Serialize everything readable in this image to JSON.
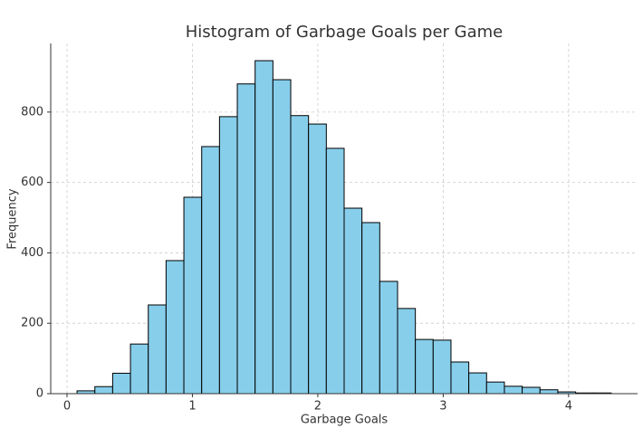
{
  "chart_data": {
    "type": "histogram",
    "title": "Histogram of Garbage Goals per Game",
    "x_label": "Garbage Goals",
    "y_label": "Frequency",
    "bins": [
      0.08,
      0.222,
      0.364,
      0.506,
      0.648,
      0.79,
      0.932,
      1.074,
      1.216,
      1.358,
      1.5,
      1.642,
      1.784,
      1.926,
      2.068,
      2.21,
      2.352,
      2.494,
      2.636,
      2.778,
      2.92,
      3.062,
      3.204,
      3.346,
      3.488,
      3.63,
      3.772,
      3.914,
      4.056,
      4.198,
      4.34
    ],
    "values": [
      8,
      20,
      58,
      141,
      252,
      378,
      558,
      702,
      787,
      880,
      946,
      892,
      790,
      766,
      697,
      527,
      486,
      319,
      242,
      154,
      152,
      90,
      59,
      33,
      21,
      18,
      11,
      5,
      2,
      2
    ],
    "color": "#87ceeb",
    "edge_color": "#000000",
    "xlim": [
      -0.13,
      4.55
    ],
    "ylim": [
      0,
      995
    ],
    "xticks": [
      0,
      1,
      2,
      3,
      4
    ],
    "yticks": [
      0,
      200,
      400,
      600,
      800
    ],
    "grid": true
  }
}
